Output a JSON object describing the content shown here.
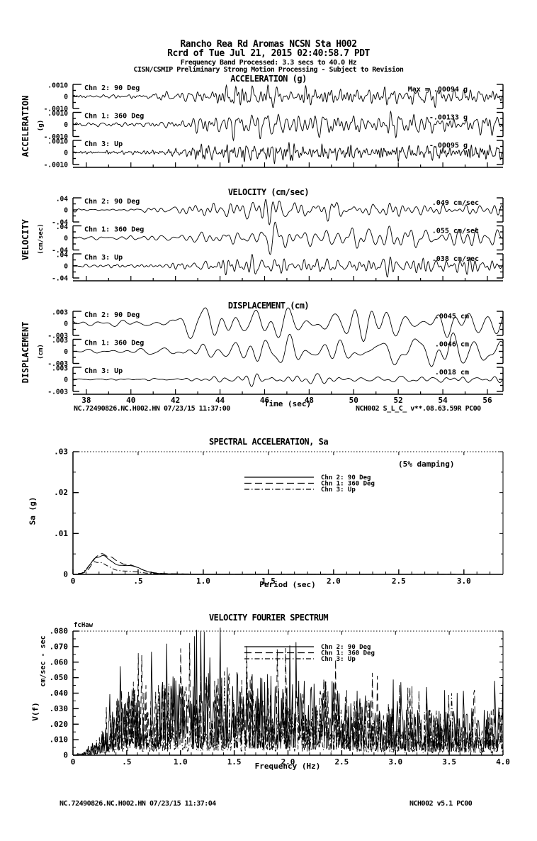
{
  "page": {
    "title_line1": "Rancho Rea Rd Aromas    NCSN Sta H002",
    "title_line2": "Rcrd of Tue Jul 21, 2015 02:40:58.7 PDT",
    "subtitle_line1": "Frequency Band Processed: 3.3 secs to 40.0 Hz",
    "subtitle_line2": "CISN/CSMIP Preliminary Strong Motion Processing - Subject to Revision",
    "footer_mid_left": "NC.72490826.NC.H002.HN 07/23/15 11:37:00",
    "footer_mid_right": "NCH002  S_L_C_  v**.08.63.59R PC00",
    "footer_bottom_left": "NC.72490826.NC.H002.HN  07/23/15 11:37:04",
    "footer_bottom_right": "NCH002   v5.1  PC00",
    "colors": {
      "ink": "#000000",
      "paper": "#ffffff",
      "dotted_grid": "#777777"
    }
  },
  "chart_data": [
    {
      "id": "acceleration",
      "type": "line",
      "kind": "time-series-group",
      "title": "ACCELERATION (g)",
      "group_label": "ACCELERATION",
      "unit_label": "(g)",
      "x": {
        "label": "",
        "min": 37.4,
        "max": 56.7,
        "major_ticks": [
          38,
          40,
          42,
          44,
          46,
          48,
          50,
          52,
          54,
          56
        ],
        "tick_labels": [
          "38",
          "40",
          "42",
          "44",
          "46",
          "48",
          "50",
          "52",
          "54",
          "56"
        ],
        "minor_step": 1,
        "show_labels": false
      },
      "y": {
        "max": 0.001,
        "labels": [
          ".0010",
          "0",
          "-.0010"
        ]
      },
      "max_label_x": 660,
      "envelope": [
        [
          37.4,
          0.18
        ],
        [
          40,
          0.2
        ],
        [
          41.5,
          0.28
        ],
        [
          42.5,
          0.55
        ],
        [
          43.5,
          0.8
        ],
        [
          45,
          1.0
        ],
        [
          47.5,
          0.92
        ],
        [
          50,
          0.85
        ],
        [
          53,
          0.8
        ],
        [
          56.7,
          0.72
        ]
      ],
      "channels": [
        {
          "label": "Chn 2: 90 Deg",
          "max_label": "Max =   .00094  g",
          "peak": 0.00094,
          "unit": "g",
          "seed": 21,
          "band": [
            1.5,
            8.0
          ]
        },
        {
          "label": "Chn 1: 360 Deg",
          "max_label": "-.00133  g",
          "peak": 0.00133,
          "unit": "g",
          "seed": 22,
          "band": [
            1.5,
            8.0
          ]
        },
        {
          "label": "Chn 3: Up",
          "max_label": "-.00095  g",
          "peak": 0.00095,
          "unit": "g",
          "seed": 23,
          "band": [
            2.5,
            11.0
          ]
        }
      ]
    },
    {
      "id": "velocity",
      "type": "line",
      "kind": "time-series-group",
      "title": "VELOCITY (cm/sec)",
      "group_label": "VELOCITY",
      "unit_label": "(cm/sec)",
      "x": {
        "label": "",
        "min": 37.4,
        "max": 56.7,
        "major_ticks": [
          38,
          40,
          42,
          44,
          46,
          48,
          50,
          52,
          54,
          56
        ],
        "tick_labels": [
          "38",
          "40",
          "42",
          "44",
          "46",
          "48",
          "50",
          "52",
          "54",
          "56"
        ],
        "minor_step": 1,
        "show_labels": false
      },
      "y": {
        "max": 0.04,
        "labels": [
          ".04",
          "0",
          "-.04"
        ]
      },
      "max_label_x": 676,
      "envelope": [
        [
          37.4,
          0.16
        ],
        [
          40,
          0.18
        ],
        [
          41.5,
          0.25
        ],
        [
          42.5,
          0.55
        ],
        [
          43.5,
          0.85
        ],
        [
          45,
          1.0
        ],
        [
          47.5,
          0.9
        ],
        [
          50,
          0.85
        ],
        [
          53,
          0.78
        ],
        [
          56.7,
          0.7
        ]
      ],
      "channels": [
        {
          "label": "Chn 2: 90 Deg",
          "max_label": ".049  cm/sec",
          "peak": 0.049,
          "unit": "cm/sec",
          "seed": 31,
          "band": [
            1.0,
            4.0
          ]
        },
        {
          "label": "Chn 1: 360 Deg",
          "max_label": ".055  cm/sec",
          "peak": 0.055,
          "unit": "cm/sec",
          "seed": 32,
          "band": [
            0.9,
            3.5
          ]
        },
        {
          "label": "Chn 3: Up",
          "max_label": ".038  cm/sec",
          "peak": 0.038,
          "unit": "cm/sec",
          "seed": 33,
          "band": [
            1.5,
            5.5
          ]
        }
      ]
    },
    {
      "id": "displacement",
      "type": "line",
      "kind": "time-series-group",
      "title": "DISPLACEMENT (cm)",
      "group_label": "DISPLACEMENT",
      "unit_label": "(cm)",
      "x": {
        "label": "Time (sec)",
        "min": 37.4,
        "max": 56.7,
        "major_ticks": [
          38,
          40,
          42,
          44,
          46,
          48,
          50,
          52,
          54,
          56
        ],
        "tick_labels": [
          "38",
          "40",
          "42",
          "44",
          "46",
          "48",
          "50",
          "52",
          "54",
          "56"
        ],
        "minor_step": 1,
        "show_labels": true
      },
      "y": {
        "max": 0.003,
        "labels": [
          ".003",
          "0",
          "-.003"
        ]
      },
      "max_label_x": 662,
      "envelope": [
        [
          37.4,
          0.2
        ],
        [
          40,
          0.22
        ],
        [
          41.5,
          0.3
        ],
        [
          42.5,
          0.6
        ],
        [
          43.5,
          0.85
        ],
        [
          45,
          1.0
        ],
        [
          47.5,
          0.95
        ],
        [
          50,
          0.9
        ],
        [
          53,
          0.85
        ],
        [
          56.7,
          0.75
        ]
      ],
      "channels": [
        {
          "label": "Chn 2: 90 Deg",
          "max_label": ".0045  cm",
          "peak": 0.0045,
          "unit": "cm",
          "seed": 41,
          "band": [
            0.5,
            2.0
          ]
        },
        {
          "label": "Chn 1: 360 Deg",
          "max_label": ".0046  cm",
          "peak": 0.0046,
          "unit": "cm",
          "seed": 42,
          "band": [
            0.5,
            1.8
          ]
        },
        {
          "label": "Chn 3: Up",
          "max_label": ".0018  cm",
          "peak": 0.0018,
          "unit": "cm",
          "seed": 43,
          "band": [
            0.8,
            2.8
          ]
        }
      ]
    },
    {
      "id": "spectral_acceleration",
      "type": "line",
      "kind": "spectrum",
      "title": "SPECTRAL ACCELERATION, Sa",
      "note": "(5% damping)",
      "ylabel": "Sa (g)",
      "xlabel": "Period (sec)",
      "x": {
        "min": 0,
        "max": 3.3,
        "major_ticks": [
          0,
          0.5,
          1.0,
          1.5,
          2.0,
          2.5,
          3.0
        ],
        "tick_labels": [
          "0",
          ".5",
          "1.0",
          "1.5",
          "2.0",
          "2.5",
          "3.0"
        ],
        "minor_step": 0.1
      },
      "y": {
        "min": 0,
        "max": 0.03,
        "major_ticks": [
          0,
          0.01,
          0.02,
          0.03
        ],
        "tick_labels": [
          "0",
          ".01",
          ".02",
          ".03"
        ],
        "minor_step": 0.005
      },
      "legend": [
        {
          "label": "Chn 2: 90 Deg",
          "dash": ""
        },
        {
          "label": "Chn 1: 360 Deg",
          "dash": "10,5"
        },
        {
          "label": "Chn 3: Up",
          "dash": "7,3,1.5,3"
        }
      ],
      "series": [
        {
          "name": "Chn 2: 90 Deg",
          "dash": "",
          "peak_value": 0.0044,
          "peak_period": 0.21,
          "second_bump": 0.0013,
          "seed": 51
        },
        {
          "name": "Chn 1: 360 Deg",
          "dash": "10,5",
          "peak_value": 0.0048,
          "peak_period": 0.23,
          "second_bump": 0.0009,
          "seed": 52
        },
        {
          "name": "Chn 3: Up",
          "dash": "7,3,1.5,3",
          "peak_value": 0.003,
          "peak_period": 0.18,
          "second_bump": 0.0004,
          "seed": 53
        }
      ]
    },
    {
      "id": "velocity_fourier_spectrum",
      "type": "line",
      "kind": "fourier",
      "title": "VELOCITY FOURIER SPECTRUM",
      "corner_label": "fcHaw",
      "ylabel_func": "V(f)",
      "ylabel_unit": "cm/sec - sec",
      "xlabel": "Frequency (Hz)",
      "x": {
        "min": 0,
        "max": 4.0,
        "major_ticks": [
          0,
          0.5,
          1.0,
          1.5,
          2.0,
          2.5,
          3.0,
          3.5,
          4.0
        ],
        "tick_labels": [
          "0",
          ".5",
          "1.0",
          "1.5",
          "2.0",
          "2.5",
          "3.0",
          "3.5",
          "4.0"
        ],
        "minor_step": 0.1
      },
      "y": {
        "min": 0,
        "max": 0.08,
        "major_ticks": [
          0,
          0.01,
          0.02,
          0.03,
          0.04,
          0.05,
          0.06,
          0.07,
          0.08
        ],
        "tick_labels": [
          "0",
          ".010",
          ".020",
          ".030",
          ".040",
          ".050",
          ".060",
          ".070",
          ".080"
        ],
        "minor_step": 0.005
      },
      "legend": [
        {
          "label": "Chn 2: 90 Deg",
          "dash": ""
        },
        {
          "label": "Chn 1: 360 Deg",
          "dash": "10,5"
        },
        {
          "label": "Chn 3: Up",
          "dash": "7,3,1.5,3"
        }
      ],
      "envelope": [
        [
          0,
          0
        ],
        [
          0.1,
          0.03
        ],
        [
          0.2,
          0.12
        ],
        [
          0.35,
          0.45
        ],
        [
          0.5,
          0.8
        ],
        [
          0.7,
          0.75
        ],
        [
          1.0,
          0.8
        ],
        [
          1.3,
          0.95
        ],
        [
          1.6,
          0.85
        ],
        [
          2.0,
          0.8
        ],
        [
          2.4,
          0.75
        ],
        [
          2.8,
          0.6
        ],
        [
          3.2,
          0.5
        ],
        [
          3.6,
          0.45
        ],
        [
          4.0,
          0.55
        ]
      ],
      "series": [
        {
          "name": "Chn 2: 90 Deg",
          "dash": "",
          "scale": 0.04,
          "seed": 61,
          "spikes": [
            [
              1.27,
              0.063
            ],
            [
              0.53,
              0.033
            ],
            [
              0.92,
              0.042
            ],
            [
              2.12,
              0.04
            ]
          ]
        },
        {
          "name": "Chn 1: 360 Deg",
          "dash": "10,5",
          "scale": 0.038,
          "seed": 62,
          "spikes": [
            [
              1.38,
              0.05
            ],
            [
              1.62,
              0.045
            ],
            [
              2.33,
              0.049
            ],
            [
              1.05,
              0.04
            ]
          ]
        },
        {
          "name": "Chn 3: Up",
          "dash": "7,3,1.5,3",
          "scale": 0.026,
          "seed": 63,
          "spikes": [
            [
              2.35,
              0.048
            ],
            [
              3.52,
              0.04
            ],
            [
              2.62,
              0.035
            ]
          ]
        }
      ]
    }
  ]
}
